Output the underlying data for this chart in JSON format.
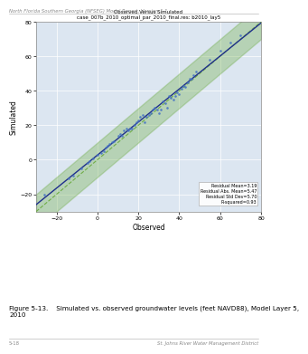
{
  "title_line1": "Observed Versus Simulated",
  "title_line2": "case_007b_2010_optimal_par_2010_final.res: b2010_lay5",
  "xlabel": "Observed",
  "ylabel": "Simulated",
  "xlim": [
    -30,
    80
  ],
  "ylim": [
    -30,
    80
  ],
  "xticks": [
    -20,
    0,
    20,
    40,
    60,
    80
  ],
  "yticks": [
    -20,
    0,
    20,
    40,
    60,
    80
  ],
  "header_text": "North Florida Southern Georgia (NFSEG) Model Report, Version 1.1",
  "footer_left": "5-18",
  "footer_right": "St. Johns River Water Management District",
  "figure_caption": "Figure 5-13.    Simulated vs. observed groundwater levels (feet NAVD88), Model Layer 5,\n2010",
  "annotation": "Residual Mean=3.19\nResidual Abs. Mean=5.47\nResidual Std Dev=5.70\nR-squared=0.93",
  "bg_color": "#dce6f1",
  "scatter_color": "#4472c4",
  "line_color": "#1f2f8c",
  "band_color": "#70ad47",
  "band_alpha": 0.35,
  "obs_x": [
    -26,
    -14,
    -12,
    -8,
    -5,
    -4,
    -2,
    0,
    2,
    3,
    4,
    5,
    6,
    7,
    8,
    10,
    11,
    12,
    13,
    14,
    15,
    16,
    17,
    18,
    19,
    20,
    21,
    22,
    23,
    24,
    25,
    26,
    27,
    28,
    29,
    30,
    31,
    32,
    33,
    34,
    35,
    36,
    37,
    38,
    39,
    40,
    41,
    42,
    43,
    44,
    45,
    46,
    47,
    48,
    55,
    60,
    65,
    70
  ],
  "sim_y": [
    -20,
    -11,
    -9,
    -5,
    -2,
    -1,
    1,
    3,
    4,
    5,
    7,
    8,
    9,
    10,
    11,
    14,
    15,
    14,
    17,
    18,
    17,
    18,
    18,
    20,
    22,
    23,
    25,
    26,
    22,
    25,
    26,
    27,
    29,
    30,
    29,
    27,
    29,
    34,
    33,
    30,
    37,
    36,
    35,
    37,
    39,
    38,
    41,
    43,
    42,
    45,
    47,
    47,
    49,
    51,
    58,
    63,
    68,
    72
  ]
}
